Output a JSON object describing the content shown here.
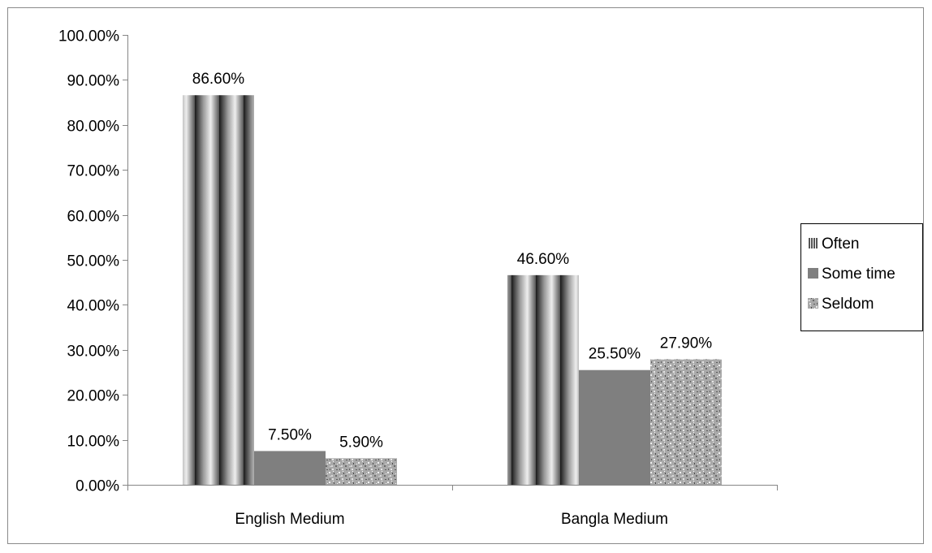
{
  "chart_data": {
    "type": "bar",
    "title": "",
    "xlabel": "",
    "ylabel": "",
    "categories": [
      "English Medium",
      "Bangla Medium"
    ],
    "series": [
      {
        "name": "Often",
        "values": [
          86.6,
          46.6
        ],
        "labels": [
          "86.60%",
          "46.60%"
        ],
        "pattern": "vertical-stripes"
      },
      {
        "name": "Some time",
        "values": [
          7.5,
          25.5
        ],
        "labels": [
          "7.50%",
          "25.50%"
        ],
        "pattern": "solid",
        "color": "#7f7f7f"
      },
      {
        "name": "Seldom",
        "values": [
          5.9,
          27.9
        ],
        "labels": [
          "5.90%",
          "27.90%"
        ],
        "pattern": "speckled"
      }
    ],
    "ylim": [
      0,
      100
    ],
    "yticks": [
      0,
      10,
      20,
      30,
      40,
      50,
      60,
      70,
      80,
      90,
      100
    ],
    "ytick_labels": [
      "0.00%",
      "10.00%",
      "20.00%",
      "30.00%",
      "40.00%",
      "50.00%",
      "60.00%",
      "70.00%",
      "80.00%",
      "90.00%",
      "100.00%"
    ],
    "grid": false,
    "legend": "right"
  }
}
